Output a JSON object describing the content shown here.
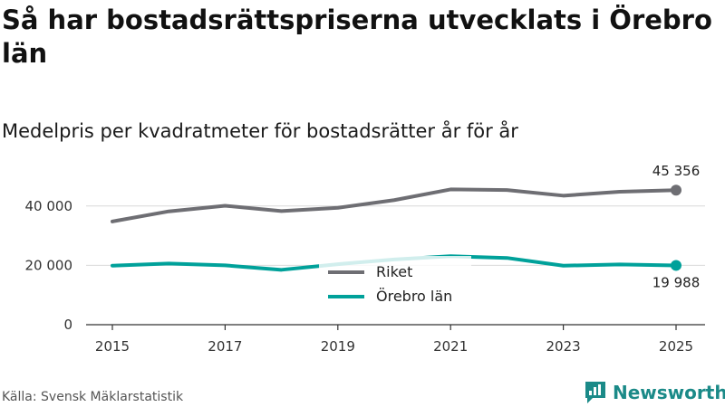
{
  "title": "Så har bostadsrättspriserna utvecklats i Örebro län",
  "subtitle": "Medelpris per kvadratmeter för bostadsrätter år för år",
  "source": "Källa: Svensk Mäklarstatistik",
  "brand": {
    "name": "Newsworthy",
    "icon": "newsworthy-logo-icon",
    "color": "#1b8a88"
  },
  "chart_data": {
    "type": "line",
    "title": "Så har bostadsrättspriserna utvecklats i Örebro län",
    "subtitle": "Medelpris per kvadratmeter för bostadsrätter år för år",
    "xlabel": "",
    "ylabel": "",
    "x": [
      2015,
      2016,
      2017,
      2018,
      2019,
      2020,
      2021,
      2022,
      2023,
      2024,
      2025
    ],
    "x_ticks": [
      "2015",
      "2017",
      "2019",
      "2021",
      "2023",
      "2025"
    ],
    "y_ticks": [
      "0",
      "20 000",
      "40 000"
    ],
    "ylim": [
      0,
      50000
    ],
    "grid": true,
    "legend_position": "center",
    "series": [
      {
        "name": "Riket",
        "color": "#6e6e73",
        "values": [
          34800,
          38200,
          40100,
          38300,
          39400,
          42000,
          45600,
          45400,
          43500,
          44800,
          45356
        ],
        "end_label": "45 356"
      },
      {
        "name": "Örebro län",
        "color": "#00a19a",
        "values": [
          19900,
          20600,
          20000,
          18500,
          20400,
          22000,
          23100,
          22500,
          19900,
          20300,
          19988
        ],
        "end_label": "19 988"
      }
    ]
  }
}
